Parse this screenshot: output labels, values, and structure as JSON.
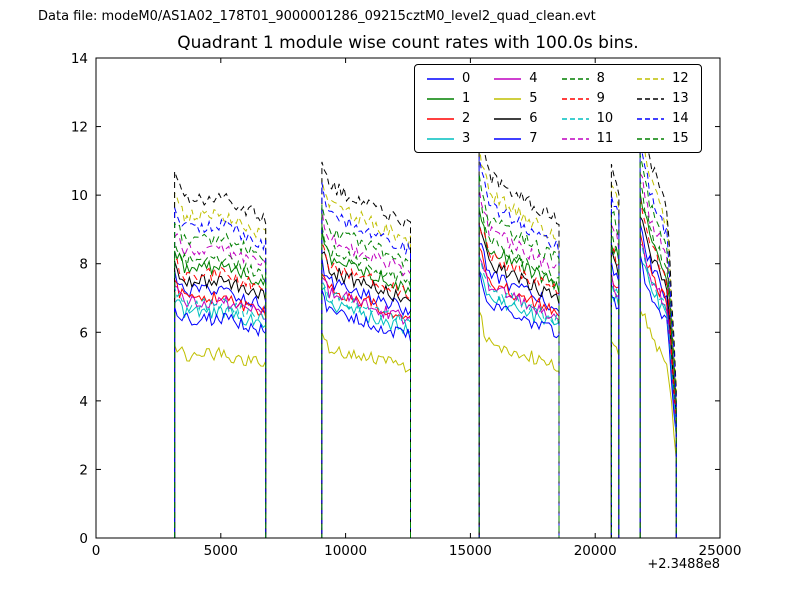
{
  "header": {
    "data_file_label": "Data file: modeM0/AS1A02_178T01_9000001286_09215cztM0_level2_quad_clean.evt"
  },
  "chart_data": {
    "type": "line",
    "title": "Quadrant 1 module wise count rates with 100.0s bins.",
    "xlabel": "",
    "ylabel": "",
    "xlim": [
      0,
      25000
    ],
    "ylim": [
      0,
      14
    ],
    "x_ticks": [
      0,
      5000,
      10000,
      15000,
      20000,
      25000
    ],
    "y_ticks": [
      0,
      2,
      4,
      6,
      8,
      10,
      12,
      14
    ],
    "x_offset_label": "+2.3488e8",
    "bin_seconds": 100,
    "noise_amplitude": 0.2,
    "grid": false,
    "legend_position": "upper center",
    "legend_columns": 4,
    "segments": [
      {
        "x0": 3150,
        "x1": 6800,
        "profile": [
          [
            0,
            1.06
          ],
          [
            0.1,
            1.0
          ],
          [
            0.55,
            1.0
          ],
          [
            1,
            0.94
          ]
        ]
      },
      {
        "x0": 9050,
        "x1": 12600,
        "profile": [
          [
            0,
            1.12
          ],
          [
            0.07,
            1.04
          ],
          [
            1,
            0.92
          ]
        ]
      },
      {
        "x0": 15350,
        "x1": 18550,
        "profile": [
          [
            0,
            1.21
          ],
          [
            0.12,
            1.07
          ],
          [
            1,
            0.93
          ]
        ]
      },
      {
        "x0": 20650,
        "x1": 20950,
        "profile": [
          [
            0,
            1.1
          ],
          [
            0.5,
            1.06
          ],
          [
            1,
            1.02
          ]
        ]
      },
      {
        "x0": 21800,
        "x1": 23250,
        "profile": [
          [
            0,
            1.27
          ],
          [
            0.25,
            1.12
          ],
          [
            0.75,
            0.97
          ],
          [
            1,
            0.45
          ]
        ]
      }
    ],
    "series": [
      {
        "name": "0",
        "color": "#0000ff",
        "style": "solid",
        "base": 7.2
      },
      {
        "name": "1",
        "color": "#008000",
        "style": "solid",
        "base": 7.9
      },
      {
        "name": "2",
        "color": "#ff0000",
        "style": "solid",
        "base": 7.0
      },
      {
        "name": "3",
        "color": "#00bfbf",
        "style": "solid",
        "base": 6.6
      },
      {
        "name": "4",
        "color": "#bf00bf",
        "style": "solid",
        "base": 6.9
      },
      {
        "name": "5",
        "color": "#bfbf00",
        "style": "solid",
        "base": 5.35
      },
      {
        "name": "6",
        "color": "#000000",
        "style": "solid",
        "base": 7.5
      },
      {
        "name": "7",
        "color": "#0000ff",
        "style": "solid",
        "base": 6.4
      },
      {
        "name": "8",
        "color": "#008000",
        "style": "dashed",
        "base": 8.1
      },
      {
        "name": "9",
        "color": "#ff0000",
        "style": "dashed",
        "base": 7.7
      },
      {
        "name": "10",
        "color": "#00bfbf",
        "style": "dashed",
        "base": 6.8
      },
      {
        "name": "11",
        "color": "#bf00bf",
        "style": "dashed",
        "base": 8.4
      },
      {
        "name": "12",
        "color": "#bfbf00",
        "style": "dashed",
        "base": 9.4
      },
      {
        "name": "13",
        "color": "#000000",
        "style": "dashed",
        "base": 9.9
      },
      {
        "name": "14",
        "color": "#0000ff",
        "style": "dashed",
        "base": 9.1
      },
      {
        "name": "15",
        "color": "#008000",
        "style": "dashed",
        "base": 8.7
      }
    ]
  }
}
